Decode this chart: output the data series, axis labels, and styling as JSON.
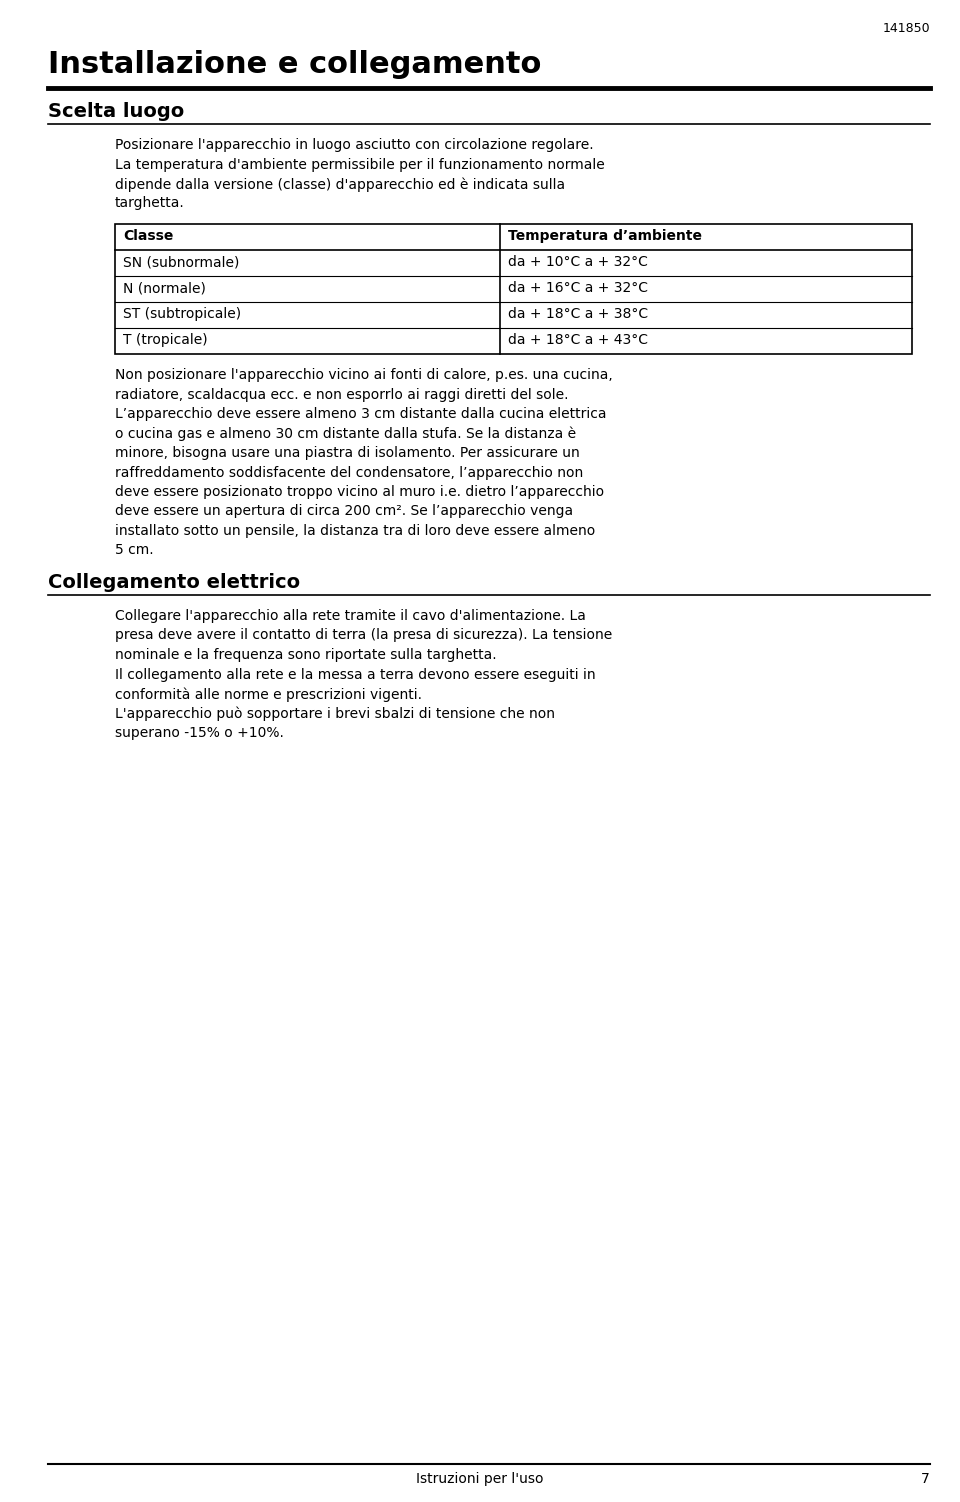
{
  "bg_color": "#ffffff",
  "text_color": "#000000",
  "page_number": "141850",
  "main_title": "Installazione e collegamento",
  "section1_title": "Scelta luogo",
  "section1_para1_lines": [
    "Posizionare l'apparecchio in luogo asciutto con circolazione regolare.",
    "La temperatura d'ambiente permissibile per il funzionamento normale",
    "dipende dalla versione (classe) d'apparecchio ed è indicata sulla",
    "targhetta."
  ],
  "table_headers": [
    "Classe",
    "Temperatura d’ambiente"
  ],
  "table_rows": [
    [
      "SN (subnormale)",
      "da + 10°C a + 32°C"
    ],
    [
      "N (normale)",
      "da + 16°C a + 32°C"
    ],
    [
      "ST (subtropicale)",
      "da + 18°C a + 38°C"
    ],
    [
      "T (tropicale)",
      "da + 18°C a + 43°C"
    ]
  ],
  "section1_para2_lines": [
    "Non posizionare l'apparecchio vicino ai fonti di calore, p.es. una cucina,",
    "radiatore, scaldacqua ecc. e non esporrlo ai raggi diretti del sole.",
    "L’apparecchio deve essere almeno 3 cm distante dalla cucina elettrica",
    "o cucina gas e almeno 30 cm distante dalla stufa. Se la distanza è",
    "minore, bisogna usare una piastra di isolamento. Per assicurare un",
    "raffreddamento soddisfacente del condensatore, l’apparecchio non",
    "deve essere posizionato troppo vicino al muro i.e. dietro l’apparecchio",
    "deve essere un apertura di circa 200 cm². Se l’apparecchio venga",
    "installato sotto un pensile, la distanza tra di loro deve essere almeno",
    "5 cm."
  ],
  "section2_title": "Collegamento elettrico",
  "section2_para1_lines": [
    "Collegare l'apparecchio alla rete tramite il cavo d'alimentazione. La",
    "presa deve avere il contatto di terra (la presa di sicurezza). La tensione",
    "nominale e la frequenza sono riportate sulla targhetta.",
    "Il collegamento alla rete e la messa a terra devono essere eseguiti in",
    "conformità alle norme e prescrizioni vigenti.",
    "L'apparecchio può sopportare i brevi sbalzi di tensione che non",
    "superano -15% o +10%."
  ],
  "footer_text": "Istruzioni per l'uso",
  "footer_page": "7"
}
